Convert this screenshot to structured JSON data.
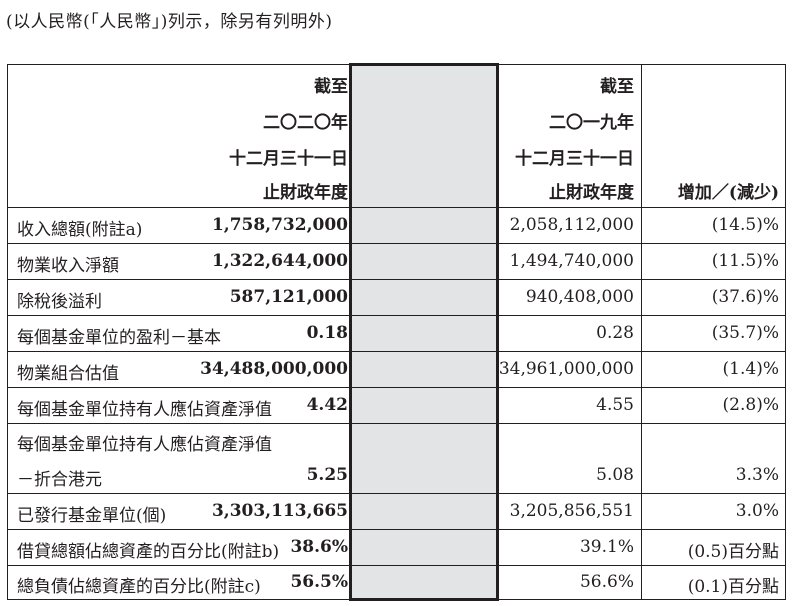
{
  "note": "(以人民幣(「人民幣」)列示，除另有列明外)",
  "headers": {
    "col1": [
      "截至",
      "二〇二〇年",
      "十二月三十一日",
      "止財政年度"
    ],
    "col2": [
      "截至",
      "二〇一九年",
      "十二月三十一日",
      "止財政年度"
    ],
    "col3": "增加／(減少)"
  },
  "rows": [
    {
      "label": "收入總額(附註a)",
      "v2020": "1,758,732,000",
      "v2019": "2,058,112,000",
      "change": "(14.5)%"
    },
    {
      "label": "物業收入淨額",
      "v2020": "1,322,644,000",
      "v2019": "1,494,740,000",
      "change": "(11.5)%"
    },
    {
      "label": "除稅後溢利",
      "v2020": "587,121,000",
      "v2019": "940,408,000",
      "change": "(37.6)%"
    },
    {
      "label": "每個基金單位的盈利－基本",
      "v2020": "0.18",
      "v2019": "0.28",
      "change": "(35.7)%"
    },
    {
      "label": "物業組合估值",
      "v2020": "34,488,000,000",
      "v2019": "34,961,000,000",
      "change": "(1.4)%"
    },
    {
      "label": "每個基金單位持有人應佔資產淨值",
      "v2020": "4.42",
      "v2019": "4.55",
      "change": "(2.8)%"
    },
    {
      "label": "每個基金單位持有人應佔資產淨值",
      "label2": "－折合港元",
      "v2020": "5.25",
      "v2019": "5.08",
      "change": "3.3%"
    },
    {
      "label": "已發行基金單位(個)",
      "v2020": "3,303,113,665",
      "v2019": "3,205,856,551",
      "change": "3.0%"
    },
    {
      "label": "借貸總額佔總資產的百分比(附註b)",
      "v2020": "38.6%",
      "v2019": "39.1%",
      "change": "(0.5)百分點"
    },
    {
      "label": "總負債佔總資產的百分比(附註c)",
      "v2020": "56.5%",
      "v2019": "56.6%",
      "change": "(0.1)百分點"
    }
  ]
}
